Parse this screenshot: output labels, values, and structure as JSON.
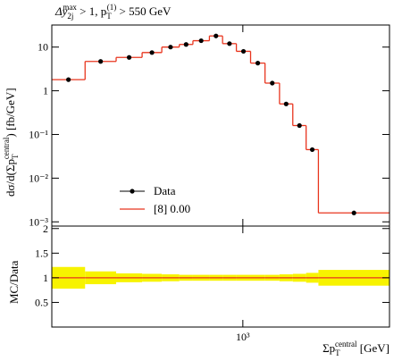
{
  "chart_data": [
    {
      "type": "histogram",
      "title": [
        "Δy",
        "2j",
        "max",
        " > 1, p",
        "T",
        "(1)",
        " > 550 GeV"
      ],
      "ylabel": [
        "dσ/d(Σp",
        "T",
        "central",
        ") [fb/GeV]"
      ],
      "bins": [
        300,
        370,
        450,
        530,
        600,
        670,
        730,
        810,
        880,
        960,
        1050,
        1150,
        1260,
        1370,
        1490,
        1610,
        2520
      ],
      "xlim": [
        300,
        2520
      ],
      "xlog": true,
      "ylim": [
        0.0008,
        32
      ],
      "ylog": true,
      "yticks": [
        {
          "value": 0.001,
          "label": "10⁻³"
        },
        {
          "value": 0.01,
          "label": "10⁻²"
        },
        {
          "value": 0.1,
          "label": "10⁻¹"
        },
        1,
        10
      ],
      "legend": "bottom-left",
      "series": [
        {
          "name": "Data",
          "color": "#000000",
          "values": [
            1.8,
            4.7,
            5.8,
            7.5,
            10,
            11.5,
            14,
            18,
            12,
            8,
            4.3,
            1.5,
            0.5,
            0.16,
            0.045,
            0.0016
          ]
        },
        {
          "name": "[8] 0.00",
          "color": "#e8351e",
          "values": [
            1.8,
            4.7,
            5.8,
            7.5,
            10,
            11.5,
            14,
            18,
            12,
            8,
            4.3,
            1.5,
            0.5,
            0.16,
            0.045,
            0.0016
          ]
        }
      ]
    },
    {
      "type": "ratio",
      "ylabel": "MC/Data",
      "xlabel": [
        "Σp",
        "T",
        "central",
        " [GeV]"
      ],
      "xticks": [
        {
          "value": 1000,
          "label": "10³"
        }
      ],
      "ylim": [
        0,
        2.05
      ],
      "yticks": [
        0.5,
        1,
        1.5,
        2
      ],
      "color": "#e8351e",
      "band_color": "#f7f300",
      "values": [
        1,
        1,
        1,
        1,
        1,
        1,
        1,
        1,
        1,
        1,
        1,
        1,
        1,
        1,
        1,
        1
      ],
      "errors": [
        0.22,
        0.13,
        0.09,
        0.08,
        0.07,
        0.06,
        0.06,
        0.06,
        0.06,
        0.06,
        0.06,
        0.06,
        0.07,
        0.08,
        0.1,
        0.16
      ]
    }
  ]
}
